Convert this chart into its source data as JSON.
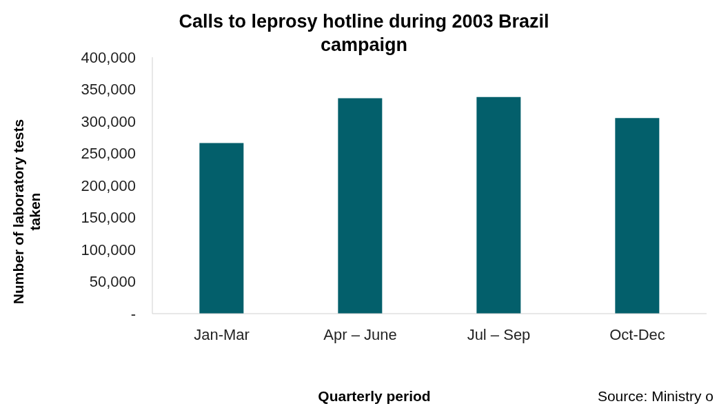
{
  "chart_data": {
    "type": "bar",
    "title": "Calls to leprosy hotline during 2003 Brazil campaign",
    "xlabel": "Quarterly period",
    "ylabel": "Number of laboratory tests taken",
    "categories": [
      "Jan-Mar",
      "Apr – June",
      "Jul – Sep",
      "Oct-Dec"
    ],
    "values": [
      266000,
      336000,
      338000,
      305000
    ],
    "color": "#035f6b",
    "ylim": [
      0,
      400000
    ],
    "yticks": [
      {
        "value": 0,
        "label": "-"
      },
      {
        "value": 50000,
        "label": "50,000"
      },
      {
        "value": 100000,
        "label": "100,000"
      },
      {
        "value": 150000,
        "label": "150,000"
      },
      {
        "value": 200000,
        "label": "200,000"
      },
      {
        "value": 250000,
        "label": "250,000"
      },
      {
        "value": 300000,
        "label": "300,000"
      },
      {
        "value": 350000,
        "label": "350,000"
      },
      {
        "value": 400000,
        "label": "400,000"
      }
    ],
    "annotations": [
      "Source: Ministry o"
    ]
  }
}
